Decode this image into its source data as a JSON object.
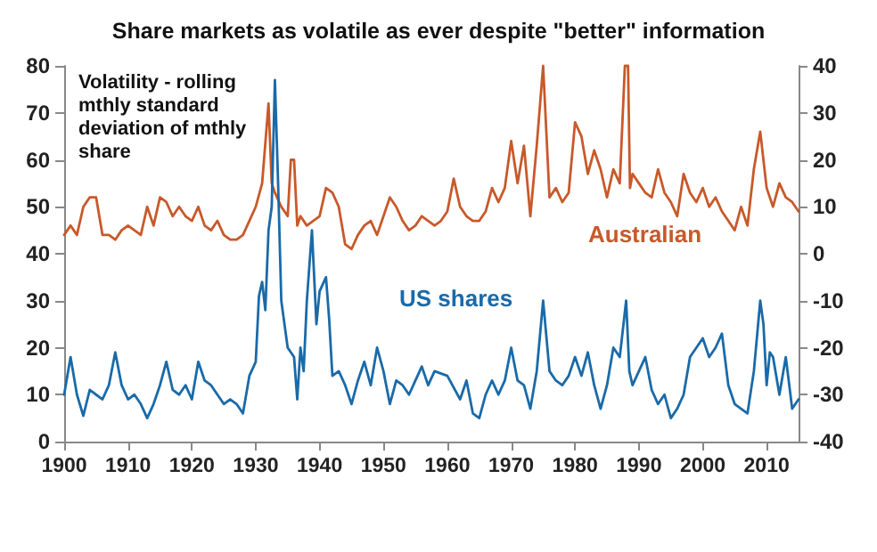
{
  "chart_data": {
    "type": "line",
    "title": "Share markets as volatile as ever despite \"better\" information",
    "annotations": [
      "Volatility - rolling mthly standard deviation of mthly share"
    ],
    "xlim": [
      1900,
      2015
    ],
    "xticks": [
      1900,
      1910,
      1920,
      1930,
      1940,
      1950,
      1960,
      1970,
      1980,
      1990,
      2000,
      2010
    ],
    "ylim": [
      0,
      80
    ],
    "yticks": [
      0,
      10,
      20,
      30,
      40,
      50,
      60,
      70,
      80
    ],
    "y2lim": [
      -40,
      40
    ],
    "y2ticks": [
      -40,
      -30,
      -20,
      -10,
      0,
      10,
      20,
      30,
      40
    ],
    "grid": false,
    "legend": false,
    "marker": "none",
    "line_style": "solid",
    "series": [
      {
        "name": "Australian",
        "color": "#c8592a",
        "axis": "y2",
        "x": [
          1900,
          1901,
          1902,
          1903,
          1904,
          1905,
          1906,
          1907,
          1908,
          1909,
          1910,
          1911,
          1912,
          1913,
          1914,
          1915,
          1916,
          1917,
          1918,
          1919,
          1920,
          1921,
          1922,
          1923,
          1924,
          1925,
          1926,
          1927,
          1928,
          1929,
          1930,
          1931,
          1932,
          1932.5,
          1933,
          1934,
          1935,
          1935.5,
          1936,
          1936.5,
          1937,
          1938,
          1939,
          1940,
          1941,
          1942,
          1943,
          1944,
          1945,
          1946,
          1947,
          1948,
          1949,
          1950,
          1951,
          1952,
          1953,
          1954,
          1955,
          1956,
          1957,
          1958,
          1959,
          1960,
          1961,
          1962,
          1963,
          1964,
          1965,
          1966,
          1967,
          1968,
          1969,
          1970,
          1971,
          1972,
          1973,
          1974,
          1975,
          1976,
          1977,
          1978,
          1979,
          1980,
          1981,
          1982,
          1983,
          1984,
          1985,
          1986,
          1987,
          1987.8,
          1988.3,
          1988.6,
          1989,
          1990,
          1991,
          1992,
          1993,
          1994,
          1995,
          1996,
          1997,
          1998,
          1999,
          2000,
          2001,
          2002,
          2003,
          2004,
          2005,
          2006,
          2007,
          2008,
          2009,
          2010,
          2011,
          2012,
          2013,
          2014,
          2015
        ],
        "values": [
          4,
          6,
          4,
          10,
          12,
          12,
          4,
          4,
          3,
          5,
          6,
          5,
          4,
          10,
          6,
          12,
          11,
          8,
          10,
          8,
          7,
          10,
          6,
          5,
          7,
          4,
          3,
          3,
          4,
          7,
          10,
          15,
          32,
          15,
          13,
          10,
          8,
          20,
          20,
          6,
          8,
          6,
          7,
          8,
          14,
          13,
          10,
          2,
          1,
          4,
          6,
          7,
          4,
          8,
          12,
          10,
          7,
          5,
          6,
          8,
          7,
          6,
          7,
          9,
          16,
          10,
          8,
          7,
          7,
          9,
          14,
          11,
          14,
          24,
          15,
          23,
          8,
          23,
          40,
          12,
          14,
          11,
          13,
          28,
          25,
          17,
          22,
          18,
          12,
          18,
          15,
          40,
          40,
          14,
          17,
          15,
          13,
          12,
          18,
          13,
          11,
          8,
          17,
          13,
          11,
          14,
          10,
          12,
          9,
          7,
          5,
          10,
          6,
          18,
          26,
          14,
          10,
          15,
          12,
          11,
          9
        ]
      },
      {
        "name": "US shares",
        "color": "#1a6aa8",
        "axis": "y",
        "x": [
          1900,
          1901,
          1902,
          1903,
          1904,
          1905,
          1906,
          1907,
          1908,
          1909,
          1910,
          1911,
          1912,
          1913,
          1914,
          1915,
          1916,
          1917,
          1918,
          1919,
          1920,
          1921,
          1922,
          1923,
          1924,
          1925,
          1926,
          1927,
          1928,
          1929,
          1930,
          1930.5,
          1931,
          1931.5,
          1932,
          1932.5,
          1933,
          1933.5,
          1934,
          1935,
          1936,
          1936.5,
          1937,
          1937.5,
          1938,
          1938.8,
          1939.5,
          1940,
          1941,
          1941.5,
          1942,
          1943,
          1944,
          1945,
          1946,
          1947,
          1948,
          1949,
          1950,
          1951,
          1952,
          1953,
          1954,
          1955,
          1956,
          1957,
          1958,
          1960,
          1962,
          1963,
          1964,
          1965,
          1966,
          1967,
          1968,
          1969,
          1970,
          1971,
          1972,
          1973,
          1974,
          1975,
          1976,
          1977,
          1978,
          1979,
          1980,
          1981,
          1982,
          1983,
          1984,
          1985,
          1986,
          1987,
          1988,
          1988.5,
          1989,
          1990,
          1991,
          1992,
          1993,
          1994,
          1995,
          1996,
          1997,
          1998,
          1999,
          2000,
          2001,
          2002,
          2003,
          2004,
          2005,
          2006,
          2007,
          2008,
          2009,
          2009.5,
          2010,
          2010.5,
          2011,
          2012,
          2013,
          2014,
          2015
        ],
        "values": [
          10,
          18,
          10,
          5.5,
          11,
          10,
          9,
          12,
          19,
          12,
          9,
          10,
          8,
          5,
          8,
          12,
          17,
          11,
          10,
          12,
          9,
          17,
          13,
          12,
          10,
          8,
          9,
          8,
          6,
          14,
          17,
          31,
          34,
          28,
          45,
          50,
          77,
          55,
          30,
          20,
          18,
          9,
          20,
          15,
          30,
          45,
          25,
          32,
          35,
          26,
          14,
          15,
          12,
          8,
          13,
          17,
          12,
          20,
          15,
          8,
          13,
          12,
          10,
          13,
          16,
          12,
          15,
          14,
          9,
          13,
          6,
          5,
          10,
          13,
          10,
          13,
          20,
          13,
          12,
          7,
          15,
          30,
          15,
          13,
          12,
          14,
          18,
          14,
          19,
          12,
          7,
          12,
          20,
          18,
          30,
          15,
          12,
          15,
          18,
          11,
          8,
          10,
          5,
          7,
          10,
          18,
          20,
          22,
          18,
          20,
          23,
          12,
          8,
          7,
          6,
          15,
          30,
          25,
          12,
          19,
          18,
          10,
          18,
          7,
          9
        ]
      }
    ]
  }
}
